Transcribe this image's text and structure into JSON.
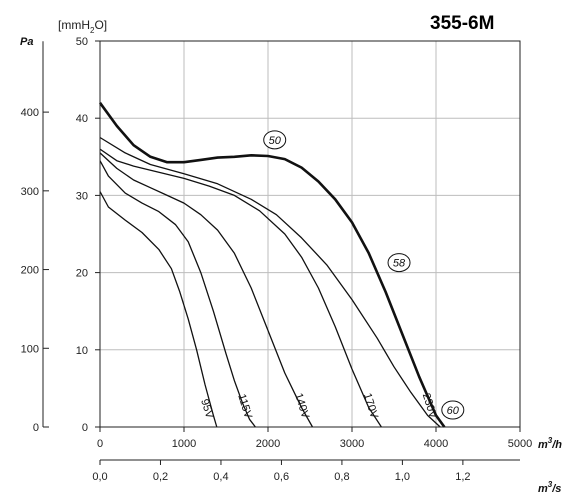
{
  "chart_data": {
    "type": "line",
    "title": "355-6M",
    "y_left_label": "Pa",
    "y_mid_label_prefix": "[mmH",
    "y_mid_label_sub": "2",
    "y_mid_label_suffix": "O]",
    "x_primary_label": "m³/h",
    "x_primary_label_base": "m",
    "x_primary_label_sup": "3",
    "x_primary_label_tail": "/h",
    "x_secondary_label_base": "m",
    "x_secondary_label_sup": "3",
    "x_secondary_label_tail": "/s",
    "xlim": [
      0,
      5000
    ],
    "ylim_mmH2O": [
      0,
      50
    ],
    "ylim_Pa": [
      0,
      490
    ],
    "x_ticks": [
      "0",
      "1000",
      "2000",
      "3000",
      "4000",
      "5000"
    ],
    "x2_ticks": [
      "0,0",
      "0,2",
      "0,4",
      "0,6",
      "0,8",
      "1,0",
      "1,2"
    ],
    "y_mm_ticks": [
      "0",
      "10",
      "20",
      "30",
      "40",
      "50"
    ],
    "y_pa_ticks": [
      "0",
      "100",
      "200",
      "300",
      "400"
    ],
    "grid": true,
    "series": [
      {
        "name": "95V",
        "bold": false,
        "x": [
          0,
          100,
          300,
          500,
          700,
          850,
          950,
          1050,
          1150,
          1250,
          1300,
          1350,
          1390
        ],
        "y": [
          30.5,
          28.5,
          26.8,
          25.2,
          23.0,
          20.5,
          17.5,
          14.0,
          10.0,
          5.5,
          3.5,
          1.5,
          0
        ]
      },
      {
        "name": "115V",
        "bold": false,
        "x": [
          0,
          100,
          300,
          500,
          700,
          900,
          1050,
          1200,
          1350,
          1500,
          1600,
          1700,
          1780,
          1850
        ],
        "y": [
          34.5,
          32.5,
          30.3,
          29.0,
          27.9,
          26.2,
          24.0,
          20.0,
          15.0,
          9.5,
          6.0,
          3.0,
          1.0,
          0
        ]
      },
      {
        "name": "140V",
        "bold": false,
        "x": [
          0,
          200,
          400,
          600,
          800,
          1000,
          1200,
          1400,
          1600,
          1800,
          2000,
          2200,
          2400,
          2530
        ],
        "y": [
          35.5,
          33.5,
          32.0,
          31.0,
          30.0,
          29.0,
          27.5,
          25.5,
          22.5,
          18.0,
          12.5,
          7.0,
          2.5,
          0
        ]
      },
      {
        "name": "170V",
        "bold": false,
        "x": [
          0,
          200,
          400,
          700,
          1000,
          1300,
          1600,
          1900,
          2200,
          2400,
          2600,
          2800,
          3000,
          3200,
          3350
        ],
        "y": [
          36.0,
          34.5,
          33.8,
          33.0,
          32.2,
          31.2,
          30.0,
          28.0,
          25.0,
          22.0,
          18.0,
          13.0,
          7.5,
          2.5,
          0
        ]
      },
      {
        "name": "230V",
        "bold": false,
        "x": [
          0,
          300,
          600,
          1000,
          1400,
          1800,
          2100,
          2400,
          2700,
          3000,
          3300,
          3500,
          3700,
          3900,
          4050
        ],
        "y": [
          37.5,
          35.5,
          34.0,
          32.8,
          31.5,
          29.5,
          27.5,
          24.5,
          21.0,
          16.5,
          11.5,
          7.8,
          4.5,
          1.5,
          0
        ]
      },
      {
        "name": "",
        "bold": true,
        "x": [
          0,
          200,
          400,
          600,
          800,
          1000,
          1200,
          1400,
          1600,
          1800,
          2000,
          2200,
          2400,
          2600,
          2800,
          3000,
          3200,
          3400,
          3600,
          3800,
          4000,
          4100
        ],
        "y": [
          42.0,
          39.0,
          36.5,
          35.0,
          34.3,
          34.3,
          34.6,
          34.9,
          35.0,
          35.2,
          35.1,
          34.7,
          33.6,
          31.8,
          29.5,
          26.5,
          22.5,
          17.5,
          12.0,
          6.5,
          1.5,
          0
        ]
      }
    ],
    "annotations": [
      {
        "text": "50",
        "x": 2080,
        "y": 37.2
      },
      {
        "text": "58",
        "x": 3560,
        "y": 21.3
      },
      {
        "text": "60",
        "x": 4200,
        "y": 2.2
      }
    ]
  }
}
